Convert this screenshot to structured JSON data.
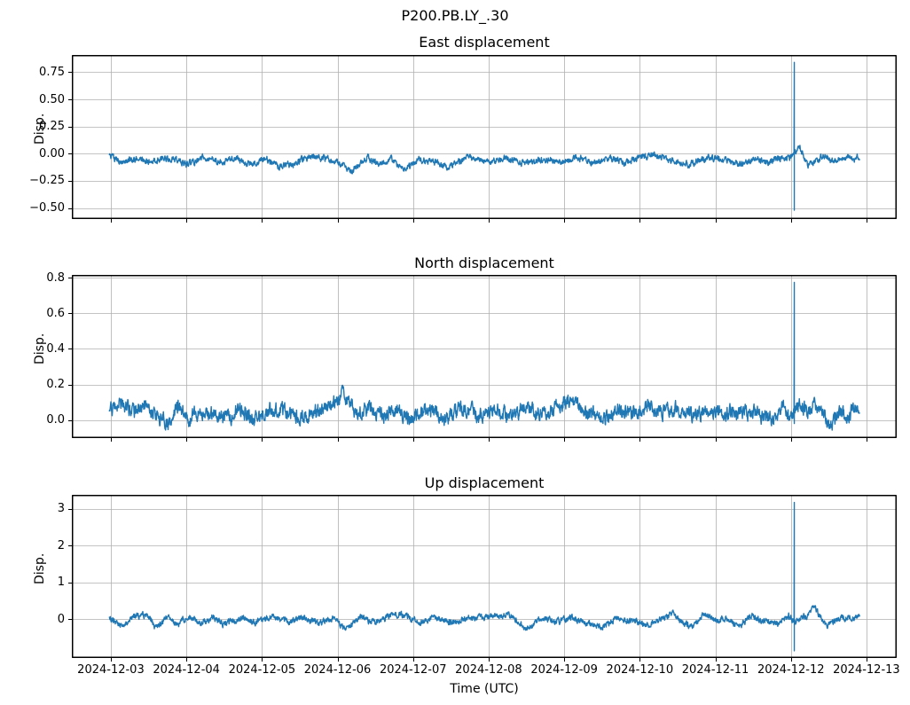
{
  "figure_title": "P200.PB.LY_.30",
  "xlabel": "Time (UTC)",
  "line_color": "#1f77b4",
  "grid_color": "#b0b0b0",
  "spine_color": "#000000",
  "x_axis": {
    "xlim_days": [
      -0.516,
      10.4
    ],
    "tick_days": [
      0,
      1,
      2,
      3,
      4,
      5,
      6,
      7,
      8,
      9,
      10
    ],
    "tick_labels": [
      "2024-12-03",
      "2024-12-04",
      "2024-12-05",
      "2024-12-06",
      "2024-12-07",
      "2024-12-08",
      "2024-12-09",
      "2024-12-10",
      "2024-12-11",
      "2024-12-12",
      "2024-12-13"
    ]
  },
  "chart_data": [
    {
      "type": "line",
      "title": "East displacement",
      "ylabel": "Disp.",
      "ylim": [
        -0.601,
        0.908
      ],
      "ytick_values": [
        0.75,
        0.5,
        0.25,
        0.0,
        -0.25,
        -0.5
      ],
      "ytick_labels": [
        "0.75",
        "0.50",
        "0.25",
        "0.00",
        "−0.25",
        "−0.50"
      ],
      "x_start_day": -0.02,
      "x_end_day": 9.91,
      "noise_amp": 0.016,
      "spike": {
        "day": 9.045,
        "max": 0.84,
        "min": -0.52
      },
      "keyframes": [
        [
          -0.02,
          -0.01
        ],
        [
          0.13,
          -0.08
        ],
        [
          0.3,
          -0.05
        ],
        [
          0.5,
          -0.07
        ],
        [
          0.68,
          -0.05
        ],
        [
          0.8,
          -0.04
        ],
        [
          1.0,
          -0.1
        ],
        [
          1.24,
          -0.03
        ],
        [
          1.46,
          -0.08
        ],
        [
          1.67,
          -0.04
        ],
        [
          1.83,
          -0.1
        ],
        [
          2.06,
          -0.04
        ],
        [
          2.22,
          -0.12
        ],
        [
          2.4,
          -0.1
        ],
        [
          2.65,
          -0.02
        ],
        [
          3.0,
          -0.08
        ],
        [
          3.18,
          -0.17
        ],
        [
          3.39,
          -0.03
        ],
        [
          3.55,
          -0.1
        ],
        [
          3.71,
          -0.04
        ],
        [
          3.86,
          -0.15
        ],
        [
          4.1,
          -0.05
        ],
        [
          4.3,
          -0.08
        ],
        [
          4.45,
          -0.12
        ],
        [
          4.73,
          -0.04
        ],
        [
          5.0,
          -0.08
        ],
        [
          5.2,
          -0.04
        ],
        [
          5.45,
          -0.09
        ],
        [
          5.7,
          -0.05
        ],
        [
          5.95,
          -0.08
        ],
        [
          6.15,
          -0.03
        ],
        [
          6.4,
          -0.08
        ],
        [
          6.6,
          -0.04
        ],
        [
          6.8,
          -0.08
        ],
        [
          7.0,
          -0.03
        ],
        [
          7.2,
          -0.01
        ],
        [
          7.4,
          -0.06
        ],
        [
          7.65,
          -0.1
        ],
        [
          7.9,
          -0.04
        ],
        [
          8.1,
          -0.06
        ],
        [
          8.35,
          -0.1
        ],
        [
          8.55,
          -0.05
        ],
        [
          8.7,
          -0.08
        ],
        [
          8.88,
          -0.03
        ],
        [
          9.0,
          -0.05
        ],
        [
          9.11,
          0.07
        ],
        [
          9.23,
          -0.11
        ],
        [
          9.38,
          -0.04
        ],
        [
          9.45,
          -0.02
        ],
        [
          9.55,
          -0.07
        ],
        [
          9.7,
          -0.03
        ],
        [
          9.82,
          -0.05
        ],
        [
          9.91,
          -0.03
        ]
      ]
    },
    {
      "type": "line",
      "title": "North displacement",
      "ylabel": "Disp.",
      "ylim": [
        -0.102,
        0.817
      ],
      "ytick_values": [
        0.8,
        0.6,
        0.4,
        0.2,
        0.0
      ],
      "ytick_labels": [
        "0.8",
        "0.6",
        "0.4",
        "0.2",
        "0.0"
      ],
      "x_start_day": -0.02,
      "x_end_day": 9.91,
      "noise_amp": 0.022,
      "spike": {
        "day": 9.045,
        "max": 0.775,
        "min": -0.02
      },
      "keyframes": [
        [
          -0.02,
          0.05
        ],
        [
          0.13,
          0.1
        ],
        [
          0.31,
          0.05
        ],
        [
          0.42,
          0.07
        ],
        [
          0.66,
          0.01
        ],
        [
          0.78,
          -0.02
        ],
        [
          0.9,
          0.09
        ],
        [
          1.03,
          0.0
        ],
        [
          1.17,
          0.06
        ],
        [
          1.35,
          0.04
        ],
        [
          1.54,
          0.0
        ],
        [
          1.66,
          0.06
        ],
        [
          1.88,
          0.01
        ],
        [
          2.15,
          0.07
        ],
        [
          2.35,
          0.04
        ],
        [
          2.5,
          0.01
        ],
        [
          2.75,
          0.05
        ],
        [
          2.97,
          0.1
        ],
        [
          3.07,
          0.15
        ],
        [
          3.25,
          0.04
        ],
        [
          3.4,
          0.07
        ],
        [
          3.6,
          0.02
        ],
        [
          3.75,
          0.06
        ],
        [
          3.94,
          0.0
        ],
        [
          4.18,
          0.07
        ],
        [
          4.41,
          0.01
        ],
        [
          4.65,
          0.06
        ],
        [
          4.9,
          0.03
        ],
        [
          5.1,
          0.06
        ],
        [
          5.3,
          0.02
        ],
        [
          5.5,
          0.07
        ],
        [
          5.7,
          0.03
        ],
        [
          5.9,
          0.08
        ],
        [
          6.1,
          0.11
        ],
        [
          6.3,
          0.04
        ],
        [
          6.5,
          0.0
        ],
        [
          6.7,
          0.06
        ],
        [
          6.9,
          0.03
        ],
        [
          7.1,
          0.08
        ],
        [
          7.3,
          0.04
        ],
        [
          7.5,
          0.07
        ],
        [
          7.7,
          0.02
        ],
        [
          7.9,
          0.06
        ],
        [
          8.1,
          0.03
        ],
        [
          8.3,
          0.05
        ],
        [
          8.51,
          0.04
        ],
        [
          8.74,
          0.0
        ],
        [
          8.9,
          0.07
        ],
        [
          8.97,
          0.02
        ],
        [
          9.13,
          0.1
        ],
        [
          9.23,
          0.04
        ],
        [
          9.35,
          0.09
        ],
        [
          9.52,
          -0.04
        ],
        [
          9.64,
          0.06
        ],
        [
          9.76,
          -0.01
        ],
        [
          9.82,
          0.09
        ],
        [
          9.91,
          0.02
        ]
      ]
    },
    {
      "type": "line",
      "title": "Up displacement",
      "ylabel": "Disp.",
      "ylim": [
        -1.045,
        3.375
      ],
      "ytick_values": [
        3,
        2,
        1,
        0
      ],
      "ytick_labels": [
        "3",
        "2",
        "1",
        "0"
      ],
      "x_start_day": -0.02,
      "x_end_day": 9.91,
      "noise_amp": 0.045,
      "spike": {
        "day": 9.045,
        "max": 3.17,
        "min": -0.85
      },
      "keyframes": [
        [
          -0.02,
          0.06
        ],
        [
          0.14,
          -0.2
        ],
        [
          0.33,
          0.1
        ],
        [
          0.49,
          0.12
        ],
        [
          0.59,
          -0.22
        ],
        [
          0.75,
          0.05
        ],
        [
          0.88,
          -0.14
        ],
        [
          1.03,
          0.1
        ],
        [
          1.19,
          -0.1
        ],
        [
          1.35,
          0.06
        ],
        [
          1.5,
          -0.14
        ],
        [
          1.74,
          0.07
        ],
        [
          1.9,
          -0.1
        ],
        [
          2.13,
          0.1
        ],
        [
          2.35,
          -0.08
        ],
        [
          2.55,
          0.06
        ],
        [
          2.75,
          -0.1
        ],
        [
          2.95,
          0.02
        ],
        [
          3.1,
          -0.26
        ],
        [
          3.3,
          0.05
        ],
        [
          3.5,
          -0.08
        ],
        [
          3.7,
          0.1
        ],
        [
          3.9,
          0.12
        ],
        [
          4.1,
          -0.1
        ],
        [
          4.3,
          0.06
        ],
        [
          4.5,
          -0.08
        ],
        [
          4.7,
          0.04
        ],
        [
          4.94,
          0.06
        ],
        [
          5.15,
          0.1
        ],
        [
          5.29,
          0.12
        ],
        [
          5.49,
          -0.27
        ],
        [
          5.7,
          0.05
        ],
        [
          5.9,
          -0.08
        ],
        [
          6.1,
          0.06
        ],
        [
          6.3,
          -0.1
        ],
        [
          6.5,
          -0.22
        ],
        [
          6.7,
          0.05
        ],
        [
          6.9,
          -0.06
        ],
        [
          7.11,
          -0.14
        ],
        [
          7.3,
          0.05
        ],
        [
          7.44,
          0.14
        ],
        [
          7.58,
          -0.1
        ],
        [
          7.7,
          -0.18
        ],
        [
          7.85,
          0.15
        ],
        [
          8.0,
          -0.05
        ],
        [
          8.15,
          0.05
        ],
        [
          8.31,
          -0.22
        ],
        [
          8.46,
          0.1
        ],
        [
          8.65,
          -0.05
        ],
        [
          8.85,
          -0.14
        ],
        [
          8.97,
          0.1
        ],
        [
          9.05,
          -0.05
        ],
        [
          9.2,
          0.1
        ],
        [
          9.31,
          0.34
        ],
        [
          9.48,
          -0.18
        ],
        [
          9.66,
          0.02
        ],
        [
          9.8,
          0.06
        ],
        [
          9.91,
          0.05
        ]
      ]
    }
  ]
}
